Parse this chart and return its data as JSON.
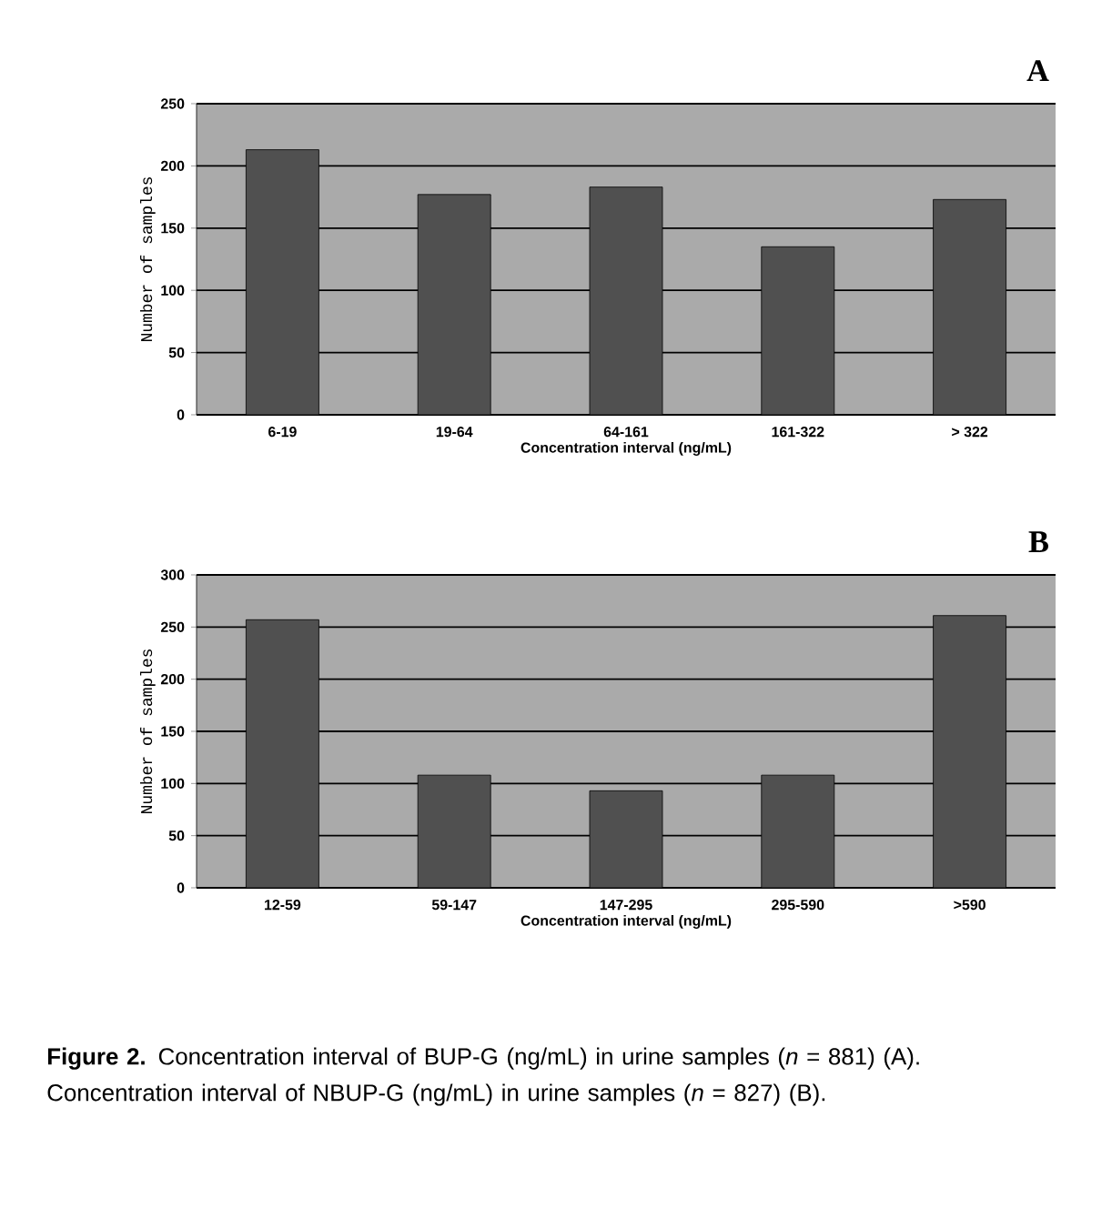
{
  "chart_data": [
    {
      "type": "bar",
      "title": "A",
      "xlabel": "Concentration interval (ng/mL)",
      "ylabel": "Number of samples",
      "categories": [
        "6-19",
        "19-64",
        "64-161",
        "161-322",
        "> 322"
      ],
      "values": [
        213,
        177,
        183,
        135,
        173
      ],
      "color": "#505050",
      "ylim": [
        0,
        250
      ],
      "yticks": [
        0,
        50,
        100,
        150,
        200,
        250
      ],
      "grid": "y"
    },
    {
      "type": "bar",
      "title": "B",
      "xlabel": "Concentration interval (ng/mL)",
      "ylabel": "Number of samples",
      "categories": [
        "12-59",
        "59-147",
        "147-295",
        "295-590",
        ">590"
      ],
      "values": [
        257,
        108,
        93,
        108,
        261
      ],
      "color": "#505050",
      "ylim": [
        0,
        300
      ],
      "yticks": [
        0,
        50,
        100,
        150,
        200,
        250,
        300
      ],
      "grid": "y",
      "annotations": [
        "**Figure 2.** Concentration interval of BUP-G (ng/mL) in urine samples (*n* = 881) (A). Concentration interval of NBUP-G (ng/mL) in urine samples (*n* = 827) (B)."
      ]
    }
  ]
}
